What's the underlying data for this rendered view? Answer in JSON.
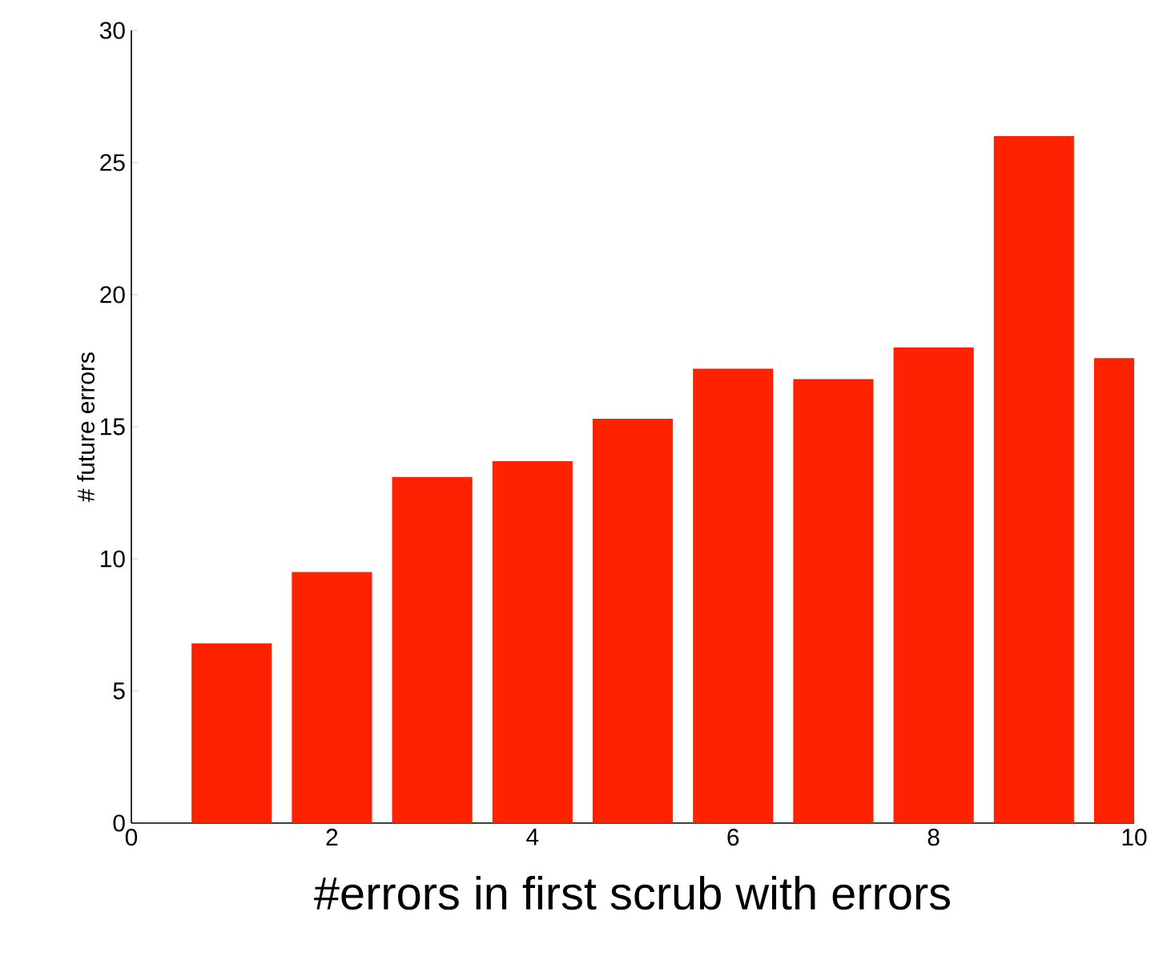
{
  "chart_data": {
    "type": "bar",
    "xlabel": "#errors in first scrub with errors",
    "ylabel": "# future errors",
    "x": [
      1,
      2,
      3,
      4,
      5,
      6,
      7,
      8,
      9,
      10
    ],
    "values": [
      6.8,
      9.5,
      13.1,
      13.7,
      15.3,
      17.2,
      16.8,
      18.0,
      26.0,
      17.6
    ],
    "color": "#ff2200",
    "xlim": [
      0,
      10
    ],
    "ylim": [
      0,
      30
    ],
    "xticks": [
      0,
      2,
      4,
      6,
      8,
      10
    ],
    "yticks": [
      0,
      5,
      10,
      15,
      20,
      25,
      30
    ],
    "grid": false
  }
}
